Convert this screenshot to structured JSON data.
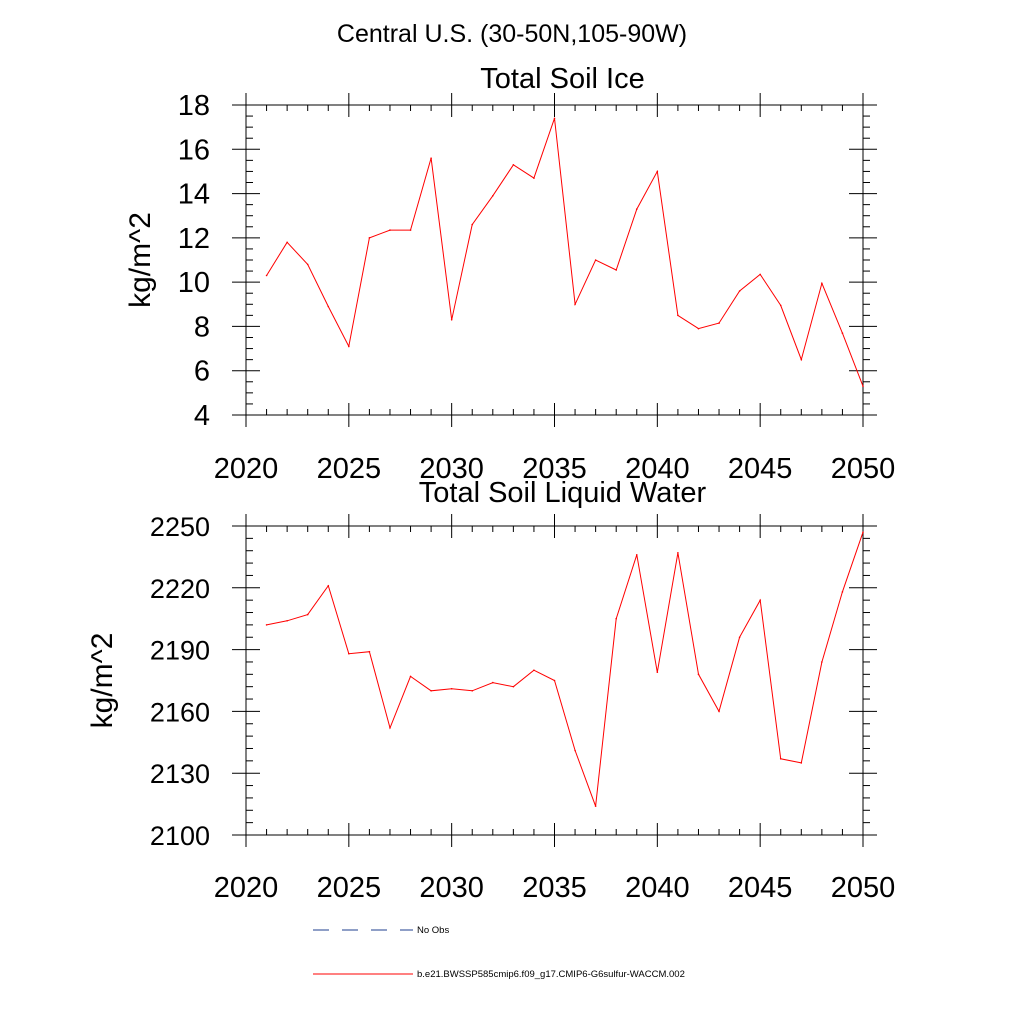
{
  "figure": {
    "suptitle": "Central U.S. (30-50N,105-90W)",
    "legend": {
      "entries": [
        {
          "label": "No Obs",
          "color": "#1f3f8f",
          "dash": "dashed"
        },
        {
          "label": "b.e21.BWSSP585cmip6.f09_g17.CMIP6-G6sulfur-WACCM.002",
          "color": "#ff0000",
          "dash": "solid"
        }
      ]
    }
  },
  "chart_data": [
    {
      "type": "line",
      "title": "Total Soil Ice",
      "xlabel": "",
      "ylabel": "kg/m^2",
      "xlim": [
        2020,
        2050
      ],
      "ylim": [
        4,
        18
      ],
      "xticks": [
        2020,
        2025,
        2030,
        2035,
        2040,
        2045,
        2050
      ],
      "yticks": [
        4,
        6,
        8,
        10,
        12,
        14,
        16,
        18
      ],
      "series": [
        {
          "color": "#ff0000",
          "x": [
            2021,
            2022,
            2023,
            2024,
            2025,
            2026,
            2027,
            2028,
            2029,
            2030,
            2031,
            2032,
            2033,
            2034,
            2035,
            2036,
            2037,
            2038,
            2039,
            2040,
            2041,
            2042,
            2043,
            2044,
            2045,
            2046,
            2047,
            2048,
            2049,
            2050
          ],
          "y": [
            10.3,
            11.8,
            10.8,
            8.9,
            7.1,
            12.0,
            12.35,
            12.35,
            15.6,
            8.3,
            12.6,
            13.9,
            15.3,
            14.7,
            17.4,
            9.0,
            11.0,
            10.55,
            13.3,
            15.0,
            8.5,
            7.9,
            8.15,
            9.6,
            10.35,
            8.95,
            6.5,
            9.95,
            7.7,
            5.3
          ]
        }
      ]
    },
    {
      "type": "line",
      "title": "Total Soil Liquid Water",
      "xlabel": "",
      "ylabel": "kg/m^2",
      "xlim": [
        2020,
        2050
      ],
      "ylim": [
        2100,
        2250
      ],
      "xticks": [
        2020,
        2025,
        2030,
        2035,
        2040,
        2045,
        2050
      ],
      "yticks": [
        2100,
        2130,
        2160,
        2190,
        2220,
        2250
      ],
      "series": [
        {
          "color": "#ff0000",
          "x": [
            2021,
            2022,
            2023,
            2024,
            2025,
            2026,
            2027,
            2028,
            2029,
            2030,
            2031,
            2032,
            2033,
            2034,
            2035,
            2036,
            2037,
            2038,
            2039,
            2040,
            2041,
            2042,
            2043,
            2044,
            2045,
            2046,
            2047,
            2048,
            2049,
            2050
          ],
          "y": [
            2202,
            2204,
            2207,
            2221,
            2188,
            2189,
            2152,
            2177,
            2170,
            2171,
            2170,
            2174,
            2172,
            2180,
            2175,
            2141,
            2114,
            2205,
            2236,
            2179,
            2237,
            2178,
            2160,
            2196,
            2214,
            2137,
            2135,
            2184,
            2218,
            2247
          ]
        }
      ]
    }
  ]
}
